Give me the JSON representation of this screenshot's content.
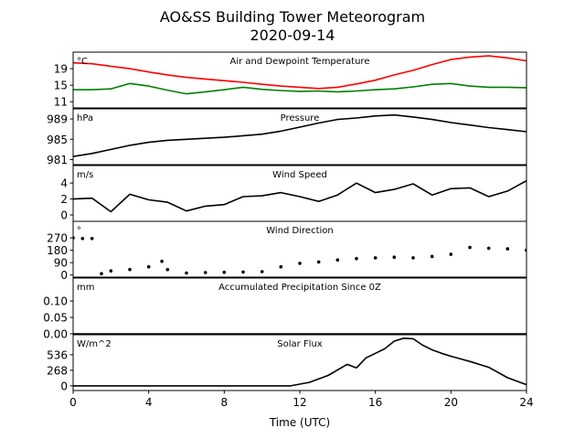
{
  "title": "AO&SS Building Tower Meteorogram",
  "subtitle": "2020-09-14",
  "xlabel": "Time (UTC)",
  "xlim": [
    0,
    24
  ],
  "xticks": [
    0,
    4,
    8,
    12,
    16,
    20,
    24
  ],
  "colors": {
    "temperature": "#ff0000",
    "dewpoint": "#008000",
    "other": "#000000"
  },
  "chart_data": [
    {
      "type": "line",
      "title": "Air and Dewpoint Temperature",
      "unit_label": "°C",
      "ylim": [
        9.5,
        23
      ],
      "yticks": [
        11,
        15,
        19
      ],
      "x": [
        0,
        1,
        2,
        3,
        4,
        5,
        6,
        7,
        8,
        9,
        10,
        11,
        12,
        13,
        14,
        15,
        16,
        17,
        18,
        19,
        20,
        21,
        22,
        23,
        24
      ],
      "series": [
        {
          "name": "",
          "color": "#ff0000",
          "values": [
            20.4,
            20.2,
            19.6,
            19.0,
            18.2,
            17.5,
            16.9,
            16.5,
            16.1,
            15.7,
            15.2,
            14.8,
            14.5,
            14.2,
            14.5,
            15.3,
            16.2,
            17.5,
            18.6,
            20.0,
            21.2,
            21.8,
            22.1,
            21.6,
            20.9
          ]
        },
        {
          "name": "",
          "color": "#008000",
          "values": [
            13.9,
            13.9,
            14.1,
            15.4,
            14.8,
            13.8,
            12.9,
            13.4,
            13.9,
            14.5,
            14.0,
            13.7,
            13.5,
            13.6,
            13.4,
            13.6,
            13.9,
            14.1,
            14.6,
            15.2,
            15.4,
            14.8,
            14.5,
            14.5,
            14.4
          ]
        }
      ]
    },
    {
      "type": "line",
      "title": "Pressure",
      "unit_label": "hPa",
      "ylim": [
        980,
        991
      ],
      "yticks": [
        981,
        985,
        989
      ],
      "x": [
        0,
        1,
        2,
        3,
        4,
        5,
        6,
        7,
        8,
        9,
        10,
        11,
        12,
        13,
        14,
        15,
        16,
        17,
        18,
        19,
        20,
        21,
        22,
        23,
        24
      ],
      "series": [
        {
          "name": "",
          "color": "#000000",
          "values": [
            981.6,
            982.2,
            983.0,
            983.8,
            984.4,
            984.8,
            985.0,
            985.2,
            985.4,
            985.7,
            986.0,
            986.6,
            987.4,
            988.2,
            988.9,
            989.2,
            989.6,
            989.8,
            989.4,
            988.9,
            988.3,
            987.8,
            987.3,
            986.9,
            986.5
          ]
        }
      ]
    },
    {
      "type": "line",
      "title": "Wind Speed",
      "unit_label": "m/s",
      "ylim": [
        -0.8,
        6.2
      ],
      "yticks": [
        0,
        2,
        4
      ],
      "x": [
        0,
        1,
        2,
        3,
        4,
        5,
        6,
        7,
        8,
        9,
        10,
        11,
        12,
        13,
        14,
        15,
        16,
        17,
        18,
        19,
        20,
        21,
        22,
        23,
        24
      ],
      "series": [
        {
          "name": "",
          "color": "#000000",
          "values": [
            2.0,
            2.1,
            0.4,
            2.6,
            1.9,
            1.6,
            0.5,
            1.1,
            1.3,
            2.3,
            2.4,
            2.8,
            2.3,
            1.7,
            2.5,
            4.0,
            2.8,
            3.2,
            3.9,
            2.5,
            3.3,
            3.4,
            2.3,
            3.0,
            4.3
          ]
        }
      ]
    },
    {
      "type": "scatter",
      "title": "Wind Direction",
      "unit_label": "°",
      "ylim": [
        -15,
        390
      ],
      "yticks": [
        0,
        90,
        180,
        270
      ],
      "x": [
        0,
        0.5,
        1.0,
        1.5,
        2.0,
        3.0,
        4.0,
        4.7,
        5.0,
        6.0,
        7.0,
        8.0,
        9.0,
        10.0,
        11.0,
        12.0,
        13.0,
        14.0,
        15.0,
        16.0,
        17.0,
        18.0,
        19.0,
        20.0,
        21.0,
        22.0,
        23.0,
        24.0
      ],
      "series": [
        {
          "name": "",
          "color": "#000000",
          "values": [
            270,
            265,
            265,
            10,
            30,
            40,
            60,
            100,
            40,
            15,
            18,
            20,
            22,
            25,
            60,
            85,
            95,
            110,
            120,
            125,
            130,
            125,
            135,
            150,
            200,
            195,
            190,
            180
          ]
        }
      ]
    },
    {
      "type": "line",
      "title": "Accumulated Precipitation Since 0Z",
      "unit_label": "mm",
      "ylim": [
        0,
        0.17
      ],
      "yticks": [
        0.0,
        0.05,
        0.1
      ],
      "ytick_labels": [
        "0.00",
        "0.05",
        "0.10"
      ],
      "x": [
        0,
        24
      ],
      "series": [
        {
          "name": "",
          "color": "#000000",
          "values": [
            0,
            0
          ]
        }
      ]
    },
    {
      "type": "line",
      "title": "Solar Flux",
      "unit_label": "W/m^2",
      "ylim": [
        -80,
        880
      ],
      "yticks": [
        0,
        268,
        536
      ],
      "x": [
        0,
        6,
        11.5,
        12.5,
        13.5,
        14.5,
        15.0,
        15.5,
        16.0,
        16.5,
        17.0,
        17.5,
        18.0,
        18.5,
        19.0,
        19.5,
        20.0,
        21.0,
        22.0,
        23.0,
        24.0
      ],
      "series": [
        {
          "name": "",
          "color": "#000000",
          "values": [
            0,
            0,
            0,
            60,
            180,
            370,
            310,
            480,
            560,
            640,
            770,
            820,
            810,
            700,
            620,
            560,
            510,
            420,
            320,
            140,
            20
          ]
        }
      ]
    }
  ]
}
